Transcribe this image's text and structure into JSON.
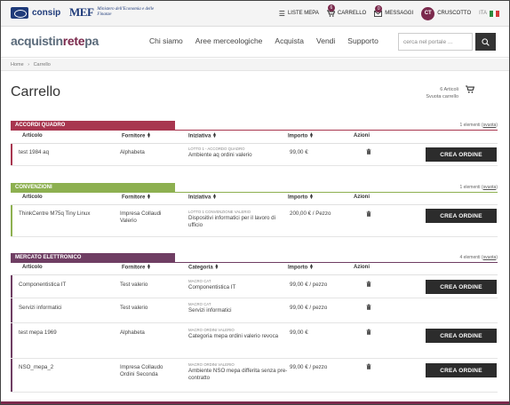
{
  "topbar": {
    "consip_label": "consip",
    "mef_mark": "MEF",
    "mef_text": "Ministero dell'Economia e delle Finanze",
    "liste_mepa": "LISTE MEPA",
    "carrello": "CARRELLO",
    "carrello_badge": "6",
    "messaggi": "MESSAGGI",
    "messaggi_badge": "0",
    "user_initials": "CT",
    "cruscotto": "CRUSCOTTO",
    "lang": "ITA"
  },
  "header": {
    "brand_a": "acquistin",
    "brand_b": "rete",
    "brand_c": "pa",
    "nav": [
      "Chi siamo",
      "Aree merceologiche",
      "Acquista",
      "Vendi",
      "Supporto"
    ],
    "search_placeholder": "cerca nel portale ..."
  },
  "breadcrumb": {
    "home": "Home",
    "sep": "›",
    "current": "Carrello"
  },
  "page": {
    "title": "Carrello",
    "count": "6 Articoli",
    "empty": "Svuota carrello"
  },
  "colors": {
    "accordi": "#a8364f",
    "convenzioni": "#8db050",
    "mercato": "#6f3e63"
  },
  "sections": [
    {
      "title": "ACCORDI QUADRO",
      "info": "1 elementi",
      "info_link": "svuota",
      "headers": [
        "Articolo",
        "Fornitore",
        "Iniziativa",
        "Importo",
        "Azioni"
      ],
      "rows": [
        {
          "articolo": "test 1984 aq",
          "fornitore": "Alphabeta",
          "cap": "LOTTO 1 - ACCORDO QUADRO",
          "iniziativa": "Ambiente aq ordini valerio",
          "importo": "99,00 €",
          "btn": "CREA ORDINE"
        }
      ]
    },
    {
      "title": "CONVENZIONI",
      "info": "1 elementi",
      "info_link": "svuota",
      "headers": [
        "Articolo",
        "Fornitore",
        "Iniziativa",
        "Importo",
        "Azioni"
      ],
      "rows": [
        {
          "articolo": "ThinkCentre M75q Tiny Linux",
          "fornitore": "Impresa Collaudi Valerio",
          "cap": "LOTTO 1 CONVENZIONE VALERIO",
          "iniziativa": "Dispositivi informatici per il lavoro di ufficio",
          "importo": "200,00 € / Pezzo",
          "btn": "CREA ORDINE"
        }
      ]
    },
    {
      "title": "MERCATO ELETTRONICO",
      "info": "4 elementi",
      "info_link": "svuota",
      "headers": [
        "Articolo",
        "Fornitore",
        "Categoria",
        "Importo",
        "Azioni"
      ],
      "rows": [
        {
          "articolo": "Componentistica IT",
          "fornitore": "Test valerio",
          "cap": "MACRO CAt",
          "iniziativa": "Componentistica IT",
          "importo": "99,00 € / pezzo",
          "btn": "CREA ORDINE"
        },
        {
          "articolo": "Servizi informatici",
          "fornitore": "Test valerio",
          "cap": "MACRO CAt",
          "iniziativa": "Servizi informatici",
          "importo": "99,00 € / pezzo",
          "btn": ""
        },
        {
          "articolo": "test mepa 1969",
          "fornitore": "Alphabeta",
          "cap": "MACRO ORDINI VALERIO",
          "iniziativa": "Categoria mepa ordini valerio revoca",
          "importo": "99,00 €",
          "btn": "CREA ORDINE"
        },
        {
          "articolo": "NSO_mepa_2",
          "fornitore": "Impresa Collaudo Ordini Seconda",
          "cap": "MACRO ORDINI VALERIO",
          "iniziativa": "Ambiente NSO mepa differita senza pre-contratto",
          "importo": "99,00 € / pezzo",
          "btn": "CREA ORDINE"
        }
      ]
    }
  ]
}
